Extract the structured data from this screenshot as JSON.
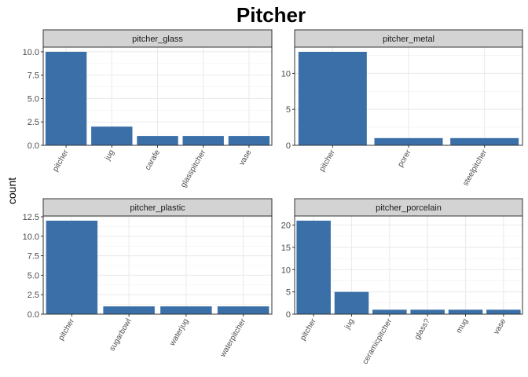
{
  "chart_data": {
    "type": "bar",
    "title": "Pitcher",
    "xlabel": "",
    "ylabel": "count",
    "bar_color": "#3A6FA8",
    "strip_color": "#D3D3D3",
    "grid": true,
    "panels": [
      {
        "name": "pitcher_glass",
        "categories": [
          "pitcher",
          "jug",
          "carafe",
          "glasspitcher",
          "vase"
        ],
        "values": [
          10,
          2,
          1,
          1,
          1
        ],
        "ylim": [
          0,
          10.5
        ],
        "yticks": [
          0,
          2.5,
          5,
          7.5,
          10
        ],
        "ytick_labels": [
          "0.0",
          "2.5",
          "5.0",
          "7.5",
          "10.0"
        ]
      },
      {
        "name": "pitcher_metal",
        "categories": [
          "pitcher",
          "porer",
          "steelpitcher"
        ],
        "values": [
          13,
          1,
          1
        ],
        "ylim": [
          0,
          13.65
        ],
        "yticks": [
          0,
          5,
          10
        ],
        "ytick_labels": [
          "0",
          "5",
          "10"
        ]
      },
      {
        "name": "pitcher_plastic",
        "categories": [
          "pitcher",
          "sugarbowl",
          "waterjug",
          "waterpitcher"
        ],
        "values": [
          12,
          1,
          1,
          1
        ],
        "ylim": [
          0,
          12.6
        ],
        "yticks": [
          0,
          2.5,
          5,
          7.5,
          10,
          12.5
        ],
        "ytick_labels": [
          "0.0",
          "2.5",
          "5.0",
          "7.5",
          "10.0",
          "12.5"
        ]
      },
      {
        "name": "pitcher_porcelain",
        "categories": [
          "pitcher",
          "jug",
          "ceramicpitcher",
          "glass?",
          "mug",
          "vase"
        ],
        "values": [
          21,
          5,
          1,
          1,
          1,
          1
        ],
        "ylim": [
          0,
          22.05
        ],
        "yticks": [
          0,
          5,
          10,
          15,
          20
        ],
        "ytick_labels": [
          "0",
          "5",
          "10",
          "15",
          "20"
        ]
      }
    ]
  }
}
